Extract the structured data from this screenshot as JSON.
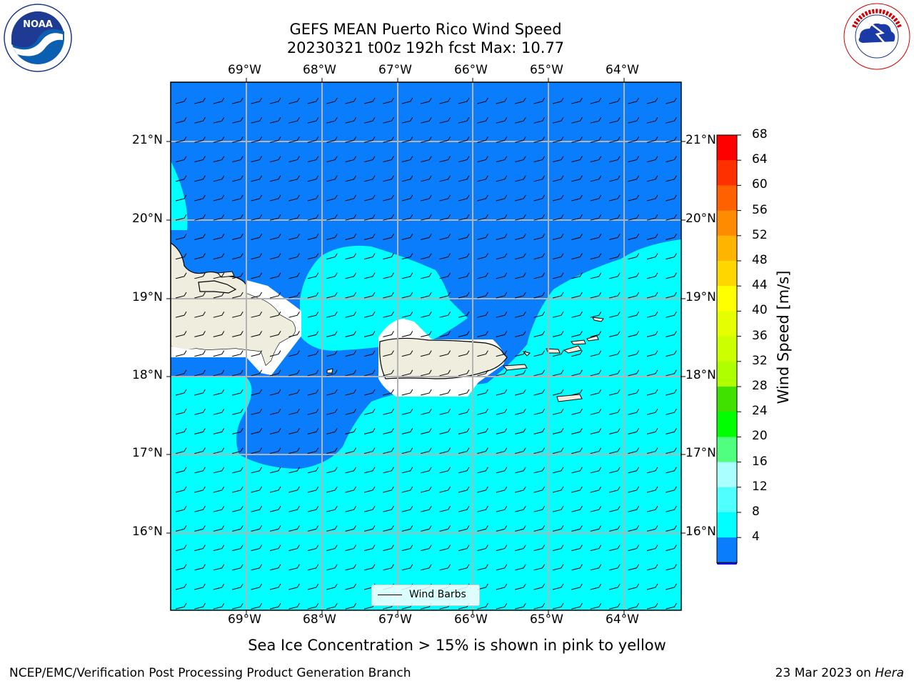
{
  "title": {
    "line1": "GEFS MEAN Puerto Rico Wind Speed",
    "line2": "20230321 t00z 192h fcst   Max: 10.77"
  },
  "map": {
    "lon_labels": [
      "69°W",
      "68°W",
      "67°W",
      "66°W",
      "65°W",
      "64°W"
    ],
    "lat_labels": [
      "21°N",
      "20°N",
      "19°N",
      "18°N",
      "17°N",
      "16°N"
    ],
    "legend_label": "Wind Barbs",
    "colors": {
      "ocean_dark": "#0a7dfc",
      "ocean_light": "#00ffff",
      "land": "#efedde"
    }
  },
  "colorbar": {
    "label": "Wind Speed [m/s]",
    "ticks": [
      "68",
      "64",
      "60",
      "56",
      "52",
      "48",
      "44",
      "40",
      "36",
      "32",
      "28",
      "24",
      "20",
      "16",
      "12",
      "8",
      "4"
    ],
    "colors": [
      "#ff0000",
      "#ff3000",
      "#ff6000",
      "#ff8c00",
      "#ffb400",
      "#ffd700",
      "#ffff00",
      "#e6ff00",
      "#ccff00",
      "#b0ff00",
      "#40e000",
      "#00ff00",
      "#50ff80",
      "#aaffff",
      "#50ffff",
      "#00ffff",
      "#0a7dfc"
    ],
    "under_color": "#0000ff"
  },
  "logos": {
    "left": "NOAA",
    "right": "NATIONAL WEATHER SERVICE"
  },
  "note": "Sea Ice Concentration > 15% is shown in pink to yellow",
  "footer": {
    "left": "NCEP/EMC/Verification Post Processing Product Generation Branch",
    "date": "23 Mar 2023 on ",
    "machine": "Hera"
  }
}
